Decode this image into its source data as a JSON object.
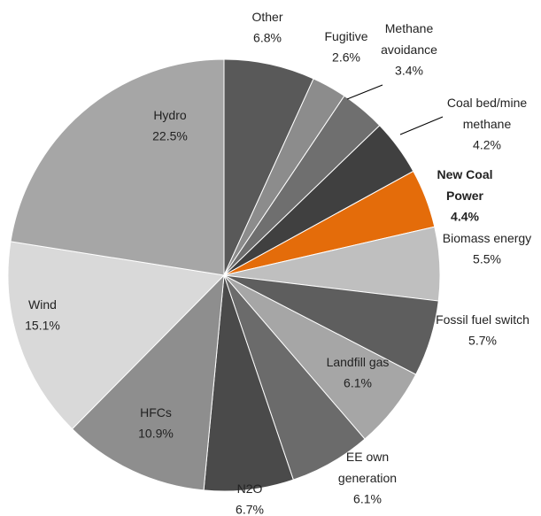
{
  "chart_data": {
    "type": "pie",
    "categories": [
      "Other",
      "Fugitive",
      "Methane avoidance",
      "Coal bed/mine methane",
      "New Coal Power",
      "Biomass energy",
      "Fossil fuel switch",
      "Landfill gas",
      "EE own generation",
      "N2O",
      "HFCs",
      "Wind",
      "Hydro"
    ],
    "values": [
      6.8,
      2.6,
      3.4,
      4.2,
      4.4,
      5.5,
      5.7,
      6.1,
      6.1,
      6.7,
      10.9,
      15.1,
      22.5
    ],
    "value_labels": [
      "6.8%",
      "2.6%",
      "3.4%",
      "4.2%",
      "4.4%",
      "5.5%",
      "5.7%",
      "6.1%",
      "6.1%",
      "6.7%",
      "10.9%",
      "15.1%",
      "22.5%"
    ],
    "colors": [
      "#595959",
      "#8c8c8c",
      "#6f6f6f",
      "#404040",
      "#e46c0a",
      "#bfbfbf",
      "#5e5e5e",
      "#a6a6a6",
      "#6b6b6b",
      "#4a4a4a",
      "#8e8e8e",
      "#d9d9d9",
      "#a6a6a6"
    ],
    "highlight_color": "#e46c0a"
  }
}
